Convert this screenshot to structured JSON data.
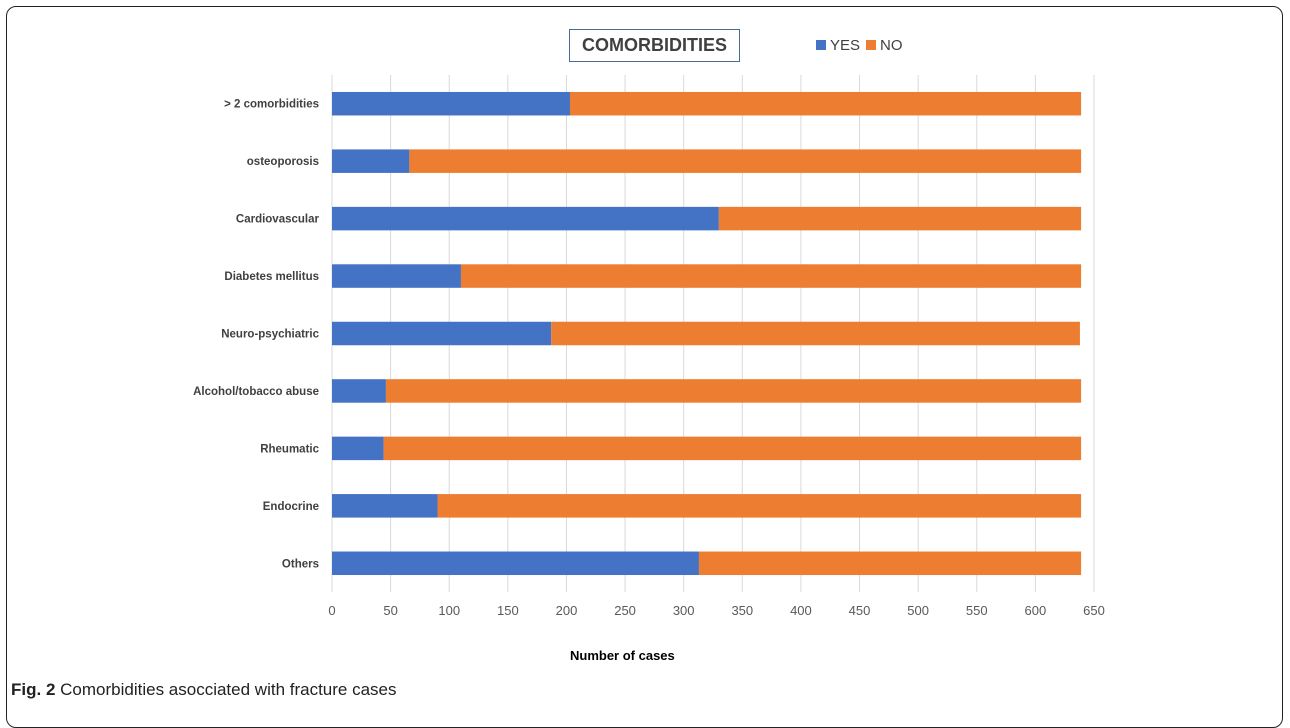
{
  "chart_data": {
    "type": "bar",
    "orientation": "horizontal",
    "stacked": true,
    "title": "COMORBIDITIES",
    "xlabel": "Number of cases",
    "ylabel": "",
    "categories": [
      "> 2 comorbidities",
      "osteoporosis",
      "Cardiovascular",
      "Diabetes mellitus",
      "Neuro-psychiatric",
      "Alcohol/tobacco abuse",
      "Rheumatic",
      "Endocrine",
      "Others"
    ],
    "series": [
      {
        "name": "YES",
        "color": "#4472C4",
        "values": [
          203,
          66,
          330,
          110,
          187,
          46,
          44,
          90,
          313
        ]
      },
      {
        "name": "NO",
        "color": "#ED7D31",
        "values": [
          436,
          573,
          309,
          529,
          451,
          593,
          595,
          549,
          326
        ]
      }
    ],
    "xlim": [
      0,
      650
    ],
    "xticks": [
      0,
      50,
      100,
      150,
      200,
      250,
      300,
      350,
      400,
      450,
      500,
      550,
      600,
      650
    ],
    "grid": true,
    "legend_position": "top"
  },
  "caption": {
    "label": "Fig. 2",
    "text": "Comorbidities asocciated with fracture cases"
  }
}
